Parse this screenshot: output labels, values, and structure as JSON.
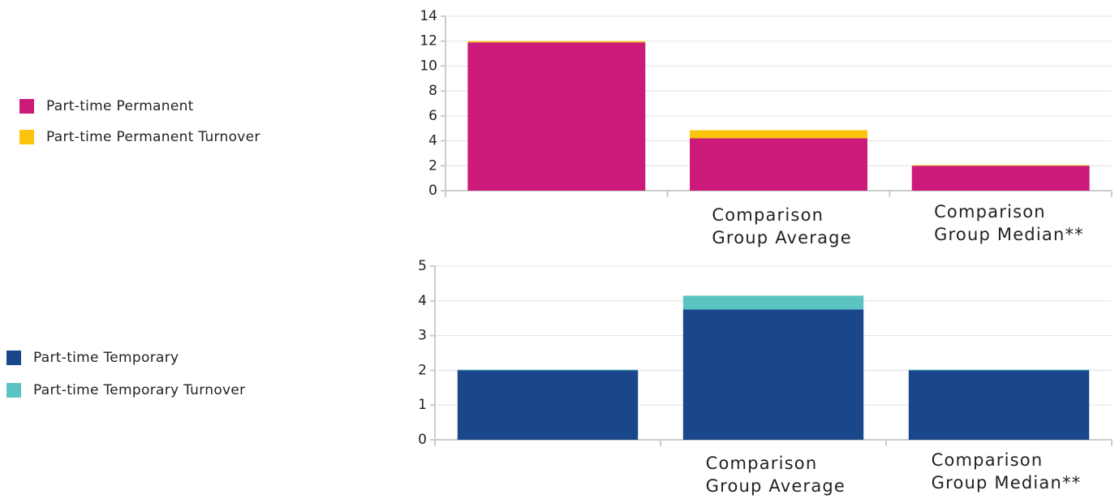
{
  "chart_data": [
    {
      "type": "bar",
      "stacked": true,
      "categories": [
        null,
        "Comparison Group Average",
        "Comparison Group Median**"
      ],
      "series": [
        {
          "name": "Part-time Permanent",
          "color": "#cc1a7a",
          "values": [
            11.9,
            4.2,
            2.0
          ]
        },
        {
          "name": "Part-time Permanent Turnover",
          "color": "#fcc30c",
          "values": [
            0.1,
            0.65,
            0.05
          ]
        }
      ],
      "ylim": [
        0,
        14
      ],
      "yticks": [
        0,
        2,
        4,
        6,
        8,
        10,
        12,
        14
      ],
      "grid": true
    },
    {
      "type": "bar",
      "stacked": true,
      "categories": [
        null,
        "Comparison Group Average",
        "Comparison Group Median**"
      ],
      "series": [
        {
          "name": "Part-time Temporary",
          "color": "#1a478a",
          "values": [
            2.0,
            3.75,
            2.0
          ]
        },
        {
          "name": "Part-time Temporary Turnover",
          "color": "#5bc4c2",
          "values": [
            0.02,
            0.4,
            0.02
          ]
        }
      ],
      "ylim": [
        0,
        5
      ],
      "yticks": [
        0,
        1,
        2,
        3,
        4,
        5
      ],
      "grid": true
    }
  ]
}
